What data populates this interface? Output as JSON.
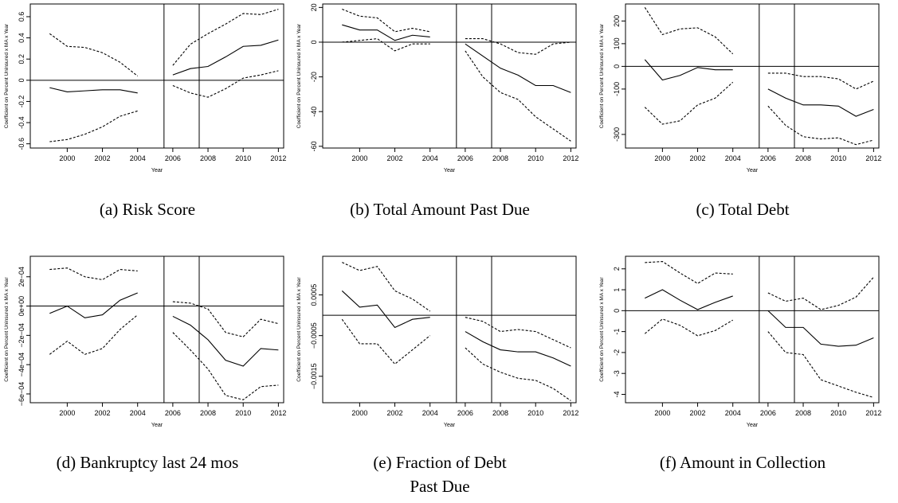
{
  "chart_data": [
    {
      "type": "line",
      "caption": "(a) Risk Score",
      "xlabel": "Year",
      "ylabel": "Coefficient on Percent Uninsured x MA x Year",
      "x": [
        1999,
        2000,
        2001,
        2002,
        2003,
        2004,
        2005,
        2006,
        2007,
        2008,
        2009,
        2010,
        2011,
        2012
      ],
      "series": [
        {
          "color": "#000000",
          "dashed": false,
          "values": [
            -0.07,
            -0.11,
            -0.1,
            -0.09,
            -0.09,
            -0.12,
            null,
            0.05,
            0.11,
            0.13,
            0.22,
            0.32,
            0.33,
            0.38
          ]
        },
        {
          "color": "#000000",
          "dashed": true,
          "values": [
            0.44,
            0.32,
            0.31,
            0.26,
            0.17,
            0.04,
            null,
            0.14,
            0.34,
            0.44,
            0.53,
            0.63,
            0.62,
            0.67
          ]
        },
        {
          "color": "#000000",
          "dashed": true,
          "values": [
            -0.58,
            -0.56,
            -0.51,
            -0.44,
            -0.34,
            -0.29,
            null,
            -0.05,
            -0.12,
            -0.16,
            -0.08,
            0.02,
            0.05,
            0.09
          ]
        }
      ],
      "xlim": [
        1997.9,
        2012.3
      ],
      "xticks": [
        2000,
        2002,
        2004,
        2006,
        2008,
        2010,
        2012
      ],
      "ylim": [
        -0.64,
        0.72
      ],
      "yticks": [
        -0.6,
        -0.4,
        -0.2,
        0.0,
        0.2,
        0.4,
        0.6
      ],
      "vlines": [
        2005.5,
        2007.5
      ],
      "hline": 0
    },
    {
      "type": "line",
      "caption": "(b) Total Amount Past Due",
      "xlabel": "Year",
      "ylabel": "Coefficient on Percent Uninsured x MA x Year",
      "x": [
        1999,
        2000,
        2001,
        2002,
        2003,
        2004,
        2005,
        2006,
        2007,
        2008,
        2009,
        2010,
        2011,
        2012
      ],
      "series": [
        {
          "color": "#000000",
          "dashed": false,
          "values": [
            10,
            7,
            7,
            1,
            4,
            3,
            null,
            -1,
            -8,
            -15,
            -19,
            -25,
            -25,
            -29
          ]
        },
        {
          "color": "#000000",
          "dashed": true,
          "values": [
            19,
            15,
            14,
            6,
            8,
            6,
            null,
            2,
            2,
            -1,
            -6,
            -7,
            -1,
            0
          ]
        },
        {
          "color": "#000000",
          "dashed": true,
          "values": [
            0,
            1,
            2,
            -5,
            -1,
            -1,
            null,
            -5,
            -20,
            -29,
            -33,
            -43,
            -50,
            -57
          ]
        }
      ],
      "xlim": [
        1997.9,
        2012.3
      ],
      "xticks": [
        2000,
        2002,
        2004,
        2006,
        2008,
        2010,
        2012
      ],
      "ylim": [
        -61,
        22
      ],
      "yticks": [
        -60,
        -40,
        -20,
        0,
        20
      ],
      "vlines": [
        2005.5,
        2007.5
      ],
      "hline": 0
    },
    {
      "type": "line",
      "caption": "(c) Total Debt",
      "xlabel": "Year",
      "ylabel": "Coefficient on Percent Uninsured x MA x Year",
      "x": [
        1999,
        2000,
        2001,
        2002,
        2003,
        2004,
        2005,
        2006,
        2007,
        2008,
        2009,
        2010,
        2011,
        2012
      ],
      "series": [
        {
          "color": "#000000",
          "dashed": false,
          "values": [
            30,
            -60,
            -40,
            -5,
            -15,
            -15,
            null,
            -100,
            -140,
            -170,
            -170,
            -175,
            -220,
            -190
          ]
        },
        {
          "color": "#000000",
          "dashed": true,
          "values": [
            260,
            140,
            165,
            170,
            130,
            55,
            null,
            -30,
            -30,
            -45,
            -45,
            -55,
            -100,
            -65
          ]
        },
        {
          "color": "#000000",
          "dashed": true,
          "values": [
            -180,
            -255,
            -240,
            -170,
            -140,
            -70,
            null,
            -175,
            -260,
            -310,
            -320,
            -315,
            -345,
            -325
          ]
        }
      ],
      "xlim": [
        1997.9,
        2012.3
      ],
      "xticks": [
        2000,
        2002,
        2004,
        2006,
        2008,
        2010,
        2012
      ],
      "ylim": [
        -360,
        275
      ],
      "yticks": [
        -300,
        -100,
        0,
        100,
        200
      ],
      "vlines": [
        2005.5,
        2007.5
      ],
      "hline": 0
    },
    {
      "type": "line",
      "caption": "(d) Bankruptcy last 24 mos",
      "xlabel": "Year",
      "ylabel": "Coefficient on Percent Uninsured x MA x Year",
      "x": [
        1999,
        2000,
        2001,
        2002,
        2003,
        2004,
        2005,
        2006,
        2007,
        2008,
        2009,
        2010,
        2011,
        2012
      ],
      "series": [
        {
          "color": "#000000",
          "dashed": false,
          "values": [
            -5e-05,
            0,
            -8e-05,
            -6e-05,
            4e-05,
            9e-05,
            null,
            -7e-05,
            -0.00013,
            -0.00023,
            -0.00037,
            -0.00041,
            -0.00029,
            -0.0003
          ]
        },
        {
          "color": "#000000",
          "dashed": true,
          "values": [
            0.00025,
            0.00026,
            0.0002,
            0.00018,
            0.00025,
            0.00024,
            null,
            3e-05,
            2e-05,
            -2e-05,
            -0.00018,
            -0.00021,
            -9e-05,
            -0.00012
          ]
        },
        {
          "color": "#000000",
          "dashed": true,
          "values": [
            -0.00033,
            -0.00024,
            -0.00033,
            -0.00029,
            -0.00016,
            -6e-05,
            null,
            -0.00018,
            -0.0003,
            -0.00043,
            -0.00061,
            -0.00064,
            -0.00055,
            -0.00054
          ]
        }
      ],
      "xlim": [
        1997.9,
        2012.3
      ],
      "xticks": [
        2000,
        2002,
        2004,
        2006,
        2008,
        2010,
        2012
      ],
      "ylim": [
        -0.00066,
        0.00034
      ],
      "yticks": [
        {
          "value": -0.0006,
          "label": "−6e−04"
        },
        {
          "value": -0.0004,
          "label": "−4e−04"
        },
        {
          "value": -0.0002,
          "label": "−2e−04"
        },
        {
          "value": 0,
          "label": "0e+00"
        },
        {
          "value": 0.0002,
          "label": "2e−04"
        }
      ],
      "vlines": [
        2005.5,
        2007.5
      ],
      "hline": 0
    },
    {
      "type": "line",
      "caption": "(e) Fraction of Debt Past Due",
      "xlabel": "Year",
      "ylabel": "Coefficient on Percent Uninsured x MA x Year",
      "x": [
        1999,
        2000,
        2001,
        2002,
        2003,
        2004,
        2005,
        2006,
        2007,
        2008,
        2009,
        2010,
        2011,
        2012
      ],
      "series": [
        {
          "color": "#000000",
          "dashed": false,
          "values": [
            0.0006,
            0.0002,
            0.00025,
            -0.0003,
            -0.0001,
            -5e-05,
            null,
            -0.0004,
            -0.00065,
            -0.00085,
            -0.0009,
            -0.0009,
            -0.00105,
            -0.00125
          ]
        },
        {
          "color": "#000000",
          "dashed": true,
          "values": [
            0.0013,
            0.0011,
            0.0012,
            0.0006,
            0.0004,
            0.0001,
            null,
            -5e-05,
            -0.00015,
            -0.0004,
            -0.00035,
            -0.0004,
            -0.0006,
            -0.0008
          ]
        },
        {
          "color": "#000000",
          "dashed": true,
          "values": [
            -0.0001,
            -0.0007,
            -0.0007,
            -0.0012,
            -0.00085,
            -0.0005,
            null,
            -0.0008,
            -0.0012,
            -0.0014,
            -0.00155,
            -0.0016,
            -0.0018,
            -0.0021
          ]
        }
      ],
      "xlim": [
        1997.9,
        2012.3
      ],
      "xticks": [
        2000,
        2002,
        2004,
        2006,
        2008,
        2010,
        2012
      ],
      "ylim": [
        -0.00215,
        0.00145
      ],
      "yticks": [
        {
          "value": -0.0015,
          "label": "−0.0015"
        },
        {
          "value": -0.0005,
          "label": "−0.0005"
        },
        {
          "value": 0.0005,
          "label": "0.0005"
        }
      ],
      "vlines": [
        2005.5,
        2007.5
      ],
      "hline": 0
    },
    {
      "type": "line",
      "caption": "(f) Amount in Collection",
      "xlabel": "Year",
      "ylabel": "Coefficient on Percent Uninsured x MA x Year",
      "x": [
        1999,
        2000,
        2001,
        2002,
        2003,
        2004,
        2005,
        2006,
        2007,
        2008,
        2009,
        2010,
        2011,
        2012
      ],
      "series": [
        {
          "color": "#000000",
          "dashed": false,
          "values": [
            0.6,
            1.0,
            0.5,
            0.05,
            0.4,
            0.7,
            null,
            0,
            -0.8,
            -0.8,
            -1.6,
            -1.7,
            -1.65,
            -1.3
          ]
        },
        {
          "color": "#000000",
          "dashed": true,
          "values": [
            2.3,
            2.35,
            1.8,
            1.3,
            1.8,
            1.75,
            null,
            0.85,
            0.45,
            0.6,
            0.05,
            0.25,
            0.65,
            1.6
          ]
        },
        {
          "color": "#000000",
          "dashed": true,
          "values": [
            -1.1,
            -0.4,
            -0.7,
            -1.2,
            -0.95,
            -0.45,
            null,
            -1.0,
            -2.0,
            -2.1,
            -3.3,
            -3.6,
            -3.9,
            -4.15
          ]
        }
      ],
      "xlim": [
        1997.9,
        2012.3
      ],
      "xticks": [
        2000,
        2002,
        2004,
        2006,
        2008,
        2010,
        2012
      ],
      "ylim": [
        -4.4,
        2.6
      ],
      "yticks": [
        -4,
        -3,
        -2,
        -1,
        0,
        1,
        2
      ],
      "vlines": [
        2005.5,
        2007.5
      ],
      "hline": 0
    }
  ]
}
